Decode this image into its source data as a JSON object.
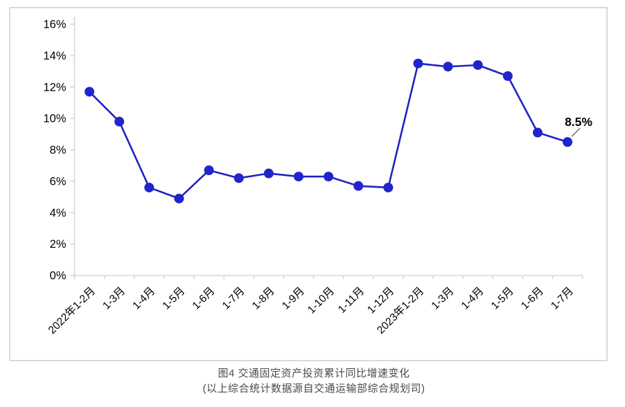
{
  "figure": {
    "caption_line1": "图4  交通固定资产投资累计同比增速变化",
    "caption_line2": "(以上综合统计数据源自交通运输部综合规划司)"
  },
  "chart_data": {
    "type": "line",
    "title": "",
    "xlabel": "",
    "ylabel": "",
    "categories": [
      "2022年1-2月",
      "1-3月",
      "1-4月",
      "1-5月",
      "1-6月",
      "1-7月",
      "1-8月",
      "1-9月",
      "1-10月",
      "1-11月",
      "1-12月",
      "2023年1-2月",
      "1-3月",
      "1-4月",
      "1-5月",
      "1-6月",
      "1-7月"
    ],
    "series": [
      {
        "name": "交通固定资产投资累计同比增速",
        "values": [
          11.7,
          9.8,
          5.6,
          4.9,
          6.7,
          6.2,
          6.5,
          6.3,
          6.3,
          5.7,
          5.6,
          13.5,
          13.3,
          13.4,
          12.7,
          9.1,
          8.5
        ]
      }
    ],
    "ylim": [
      0,
      16
    ],
    "y_tick_step": 2,
    "y_tick_labels": [
      "0%",
      "2%",
      "4%",
      "6%",
      "8%",
      "10%",
      "12%",
      "14%",
      "16%"
    ],
    "x_label_rotation_deg": -45,
    "grid": false,
    "legend_position": "none",
    "annotation": {
      "text": "8.5%",
      "category_index": 16,
      "value": 8.5
    },
    "colors": {
      "series_line": "#2023C0",
      "series_marker": "#2124CC",
      "axis": "#D6D6D6",
      "tick_label": "#000000",
      "annotation_text": "#000000",
      "annotation_leader": "#555555"
    }
  }
}
